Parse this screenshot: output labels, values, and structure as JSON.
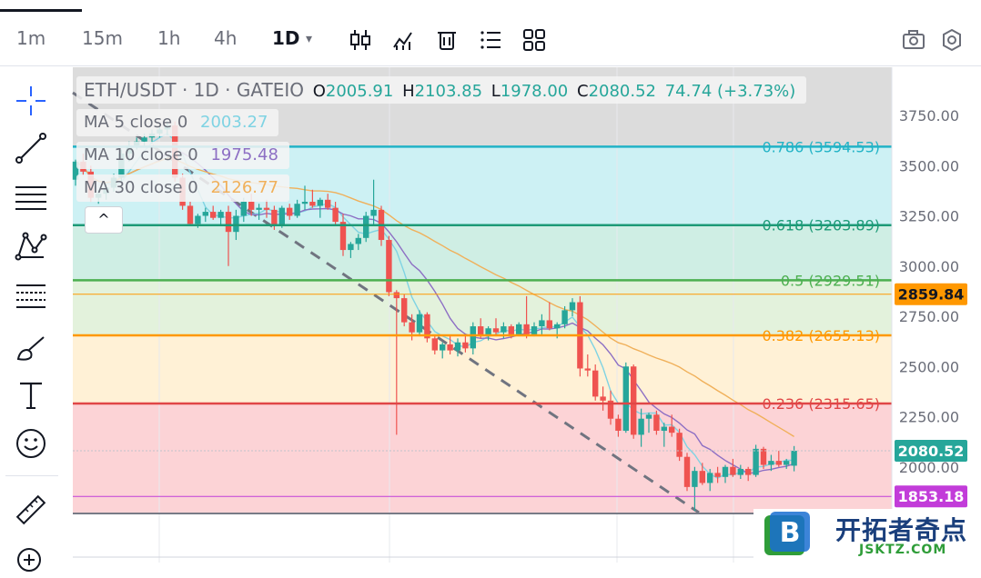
{
  "toolbar": {
    "timeframes": [
      "1m",
      "15m",
      "1h",
      "4h",
      "1D"
    ],
    "active_timeframe": "1D",
    "dropdown_glyph": "▾",
    "icons": [
      "candles-icon",
      "indicators-icon",
      "trash-icon",
      "list-icon",
      "layout-grid-icon",
      "camera-icon",
      "settings-icon"
    ]
  },
  "left_tools": [
    "crosshair-icon",
    "trend-line-icon",
    "horizontal-lines-icon",
    "pattern-icon",
    "fib-tool-icon",
    "brush-icon",
    "text-icon",
    "emoji-icon",
    "ruler-icon",
    "zoom-in-icon"
  ],
  "legend": {
    "symbol": "ETH/USDT · 1D · GATEIO",
    "o_label": "O",
    "o_value": "2005.91",
    "h_label": "H",
    "h_value": "2103.85",
    "l_label": "L",
    "l_value": "1978.00",
    "c_label": "C",
    "c_value": "2080.52",
    "change": "74.74 (+3.73%)",
    "ma5_label": "MA 5 close 0",
    "ma5_value": "2003.27",
    "ma10_label": "MA 10 close 0",
    "ma10_value": "1975.48",
    "ma30_label": "MA 30 close 0",
    "ma30_value": "2126.77",
    "collapse_glyph": "^"
  },
  "colors": {
    "up": "#26a69a",
    "down": "#ef5350",
    "ma5": "#7fd3e3",
    "ma10": "#8d6fc4",
    "ma30": "#f0b05a",
    "fib_0786": "#22b3c6",
    "fib_0618": "#1d9a77",
    "fib_05": "#4caf50",
    "fib_0382": "#ff9800",
    "fib_0236": "#e04646",
    "price_tag": "#26a69a",
    "line_2859": "#ff9800",
    "line_1853": "#c23cd9"
  },
  "chart_data": {
    "type": "candlestick",
    "ylim": [
      1750,
      3800
    ],
    "y_ticks": [
      "3750.00",
      "3500.00",
      "3250.00",
      "3000.00",
      "2750.00",
      "2500.00",
      "2250.00",
      "2000.00"
    ],
    "fib_levels": [
      {
        "ratio": "0.786",
        "price": 3594.53,
        "label": "0.786 (3594.53)"
      },
      {
        "ratio": "0.618",
        "price": 3203.89,
        "label": "0.618 (3203.89)"
      },
      {
        "ratio": "0.5",
        "price": 2929.51,
        "label": "0.5 (2929.51)"
      },
      {
        "ratio": "0.382",
        "price": 2655.13,
        "label": "0.382 (2655.13)"
      },
      {
        "ratio": "0.236",
        "price": 2315.65,
        "label": "0.236 (2315.65)"
      }
    ],
    "price_tags": [
      {
        "price": 2859.84,
        "label": "2859.84"
      },
      {
        "price": 2080.52,
        "label": "2080.52"
      },
      {
        "price": 1853.18,
        "label": "1853.18"
      }
    ],
    "candles": [
      [
        3430,
        3530,
        3400,
        3520
      ],
      [
        3520,
        3560,
        3450,
        3470
      ],
      [
        3470,
        3500,
        3320,
        3340
      ],
      [
        3340,
        3380,
        3310,
        3360
      ],
      [
        3360,
        3410,
        3330,
        3390
      ],
      [
        3390,
        3460,
        3370,
        3440
      ],
      [
        3440,
        3580,
        3420,
        3560
      ],
      [
        3560,
        3620,
        3520,
        3600
      ],
      [
        3600,
        3640,
        3580,
        3620
      ],
      [
        3620,
        3660,
        3590,
        3640
      ],
      [
        3640,
        3680,
        3610,
        3660
      ],
      [
        3660,
        3700,
        3640,
        3680
      ],
      [
        3680,
        3720,
        3650,
        3700
      ],
      [
        3700,
        3720,
        3420,
        3440
      ],
      [
        3440,
        3460,
        3280,
        3300
      ],
      [
        3300,
        3320,
        3200,
        3210
      ],
      [
        3210,
        3260,
        3190,
        3250
      ],
      [
        3250,
        3290,
        3220,
        3270
      ],
      [
        3270,
        3300,
        3230,
        3240
      ],
      [
        3240,
        3280,
        3200,
        3270
      ],
      [
        3270,
        3300,
        3000,
        3170
      ],
      [
        3170,
        3280,
        3130,
        3250
      ],
      [
        3250,
        3340,
        3220,
        3320
      ],
      [
        3320,
        3360,
        3250,
        3280
      ],
      [
        3280,
        3310,
        3230,
        3290
      ],
      [
        3290,
        3330,
        3240,
        3280
      ],
      [
        3280,
        3300,
        3180,
        3200
      ],
      [
        3200,
        3300,
        3190,
        3290
      ],
      [
        3290,
        3310,
        3230,
        3250
      ],
      [
        3250,
        3330,
        3240,
        3310
      ],
      [
        3310,
        3400,
        3280,
        3320
      ],
      [
        3320,
        3380,
        3290,
        3300
      ],
      [
        3300,
        3340,
        3240,
        3330
      ],
      [
        3330,
        3360,
        3280,
        3290
      ],
      [
        3290,
        3320,
        3200,
        3220
      ],
      [
        3220,
        3260,
        3050,
        3080
      ],
      [
        3080,
        3120,
        3040,
        3110
      ],
      [
        3110,
        3160,
        3080,
        3140
      ],
      [
        3140,
        3270,
        3120,
        3250
      ],
      [
        3250,
        3430,
        3200,
        3280
      ],
      [
        3280,
        3300,
        3100,
        3130
      ],
      [
        3130,
        3150,
        2850,
        2870
      ],
      [
        2870,
        2880,
        2160,
        2840
      ],
      [
        2840,
        2860,
        2700,
        2720
      ],
      [
        2720,
        2760,
        2630,
        2670
      ],
      [
        2670,
        2780,
        2650,
        2760
      ],
      [
        2760,
        2770,
        2620,
        2640
      ],
      [
        2640,
        2650,
        2560,
        2580
      ],
      [
        2580,
        2620,
        2540,
        2610
      ],
      [
        2610,
        2650,
        2560,
        2580
      ],
      [
        2580,
        2640,
        2550,
        2620
      ],
      [
        2620,
        2660,
        2570,
        2590
      ],
      [
        2590,
        2720,
        2560,
        2700
      ],
      [
        2700,
        2740,
        2640,
        2650
      ],
      [
        2650,
        2700,
        2630,
        2690
      ],
      [
        2690,
        2740,
        2650,
        2670
      ],
      [
        2670,
        2720,
        2640,
        2700
      ],
      [
        2700,
        2710,
        2640,
        2660
      ],
      [
        2660,
        2720,
        2650,
        2710
      ],
      [
        2710,
        2850,
        2640,
        2660
      ],
      [
        2660,
        2720,
        2650,
        2700
      ],
      [
        2700,
        2760,
        2660,
        2730
      ],
      [
        2730,
        2820,
        2680,
        2690
      ],
      [
        2690,
        2720,
        2640,
        2710
      ],
      [
        2710,
        2800,
        2690,
        2780
      ],
      [
        2780,
        2840,
        2750,
        2820
      ],
      [
        2820,
        2850,
        2450,
        2490
      ],
      [
        2490,
        2560,
        2450,
        2480
      ],
      [
        2480,
        2510,
        2330,
        2350
      ],
      [
        2350,
        2400,
        2280,
        2330
      ],
      [
        2330,
        2380,
        2210,
        2240
      ],
      [
        2240,
        2260,
        2150,
        2180
      ],
      [
        2180,
        2520,
        2170,
        2500
      ],
      [
        2500,
        2510,
        2140,
        2160
      ],
      [
        2160,
        2290,
        2100,
        2240
      ],
      [
        2240,
        2270,
        2170,
        2260
      ],
      [
        2260,
        2280,
        2160,
        2180
      ],
      [
        2180,
        2220,
        2100,
        2200
      ],
      [
        2200,
        2260,
        2150,
        2170
      ],
      [
        2170,
        2190,
        2030,
        2050
      ],
      [
        2050,
        2070,
        1880,
        1900
      ],
      [
        1900,
        2000,
        1780,
        1980
      ],
      [
        1980,
        2020,
        1910,
        1920
      ],
      [
        1920,
        1990,
        1880,
        1970
      ],
      [
        1970,
        2000,
        1920,
        1950
      ],
      [
        1950,
        2010,
        1920,
        2000
      ],
      [
        2000,
        2040,
        1950,
        1960
      ],
      [
        1960,
        2010,
        1940,
        1990
      ],
      [
        1990,
        2000,
        1930,
        1960
      ],
      [
        1960,
        2110,
        1950,
        2090
      ],
      [
        2090,
        2100,
        1990,
        2010
      ],
      [
        2010,
        2060,
        1980,
        2030
      ],
      [
        2030,
        2080,
        2000,
        2010
      ],
      [
        2010,
        2040,
        1990,
        2030
      ],
      [
        2005.91,
        2103.85,
        1978,
        2080.52
      ]
    ]
  }
}
